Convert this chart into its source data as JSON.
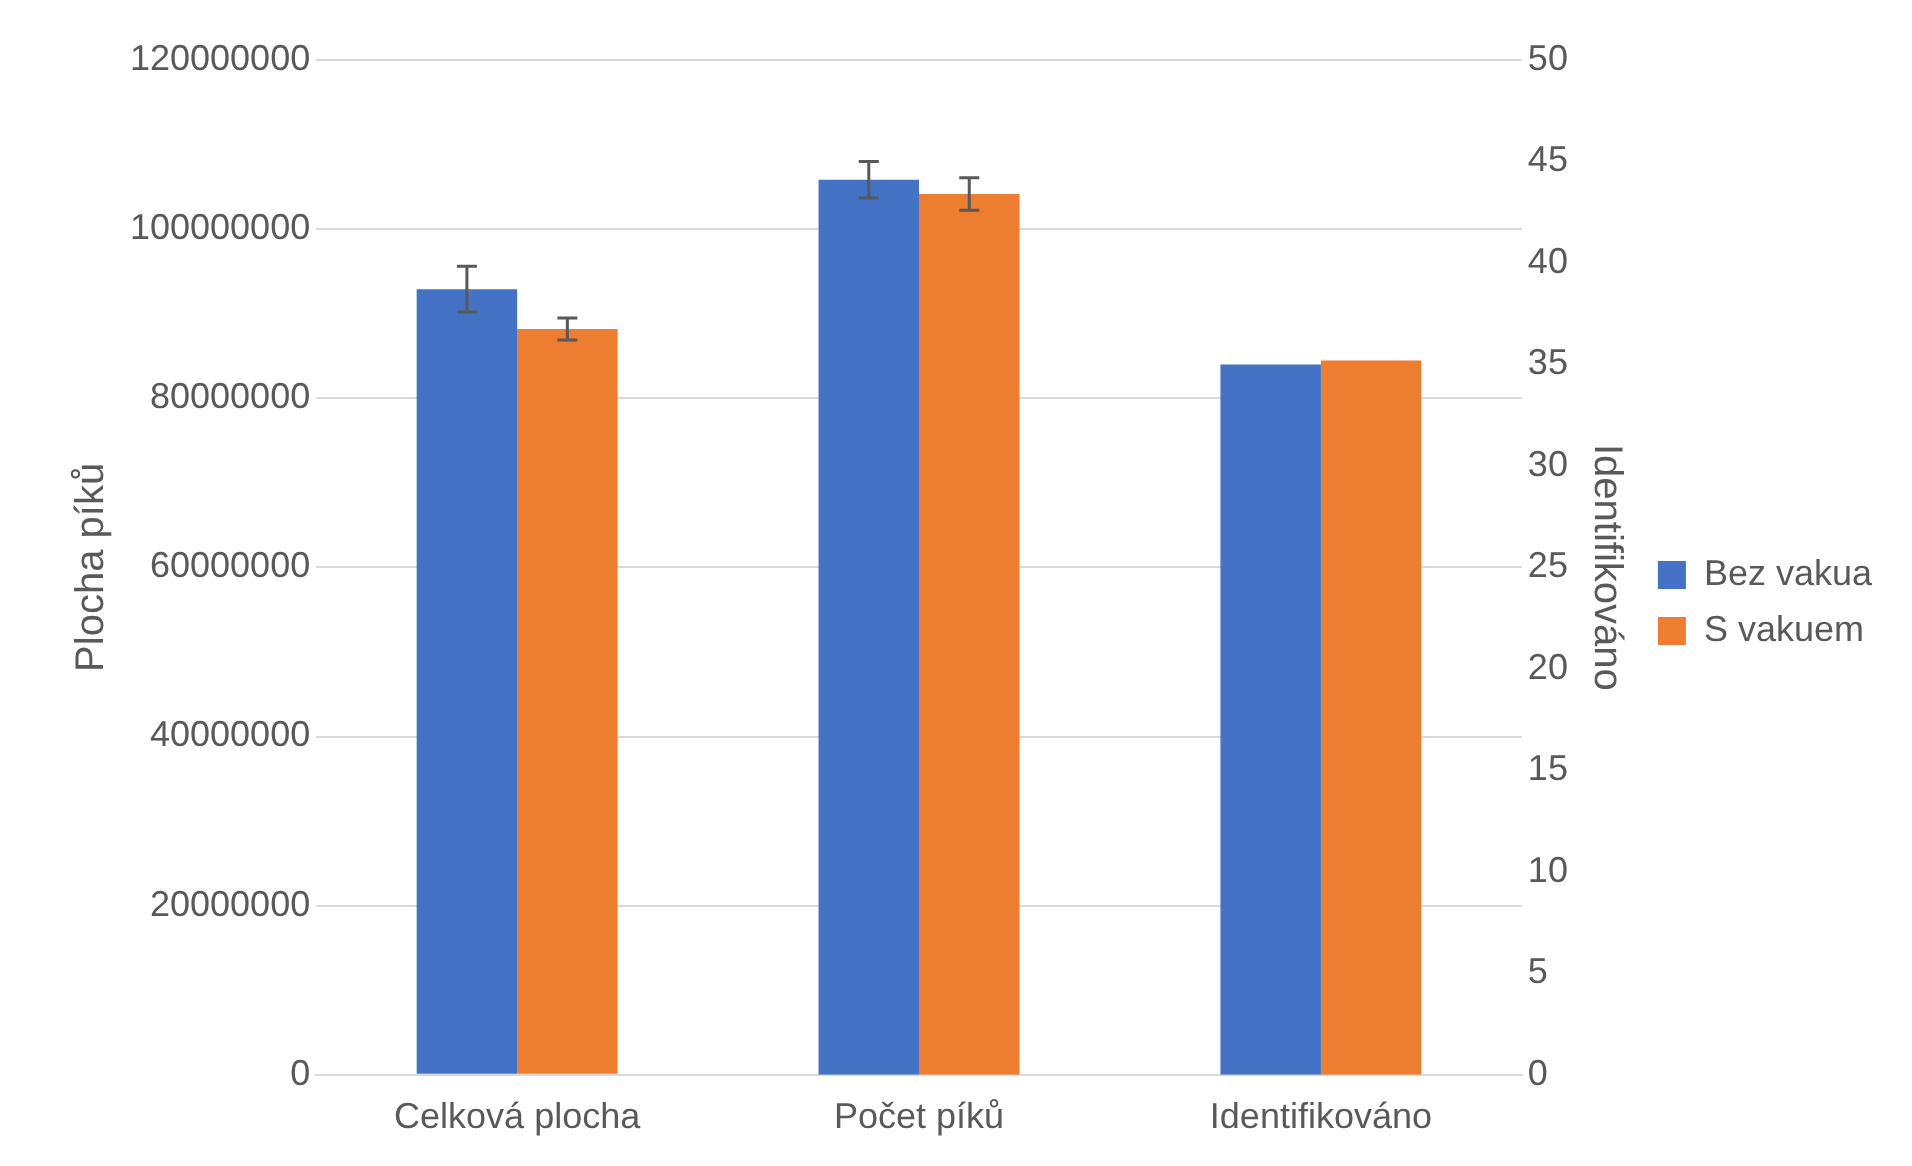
{
  "chart_data": {
    "type": "bar",
    "categories": [
      "Celková plocha",
      "Počet píků",
      "Identifikováno"
    ],
    "series": [
      {
        "name": "Bez vakua",
        "color": "#4472c4",
        "values": [
          92900000,
          null,
          null
        ],
        "errors": [
          2700000,
          null,
          null
        ]
      },
      {
        "name": "S vakuem",
        "color": "#ed7d31",
        "values": [
          88200000,
          null,
          null
        ],
        "errors": [
          1300000,
          null,
          null
        ]
      },
      {
        "color": "#4472c4",
        "axis": "y2",
        "values": [
          null,
          44.1,
          35.0
        ],
        "errors": [
          null,
          0.9,
          null
        ]
      },
      {
        "color": "#ed7d31",
        "axis": "y2",
        "values": [
          null,
          43.4,
          35.2
        ],
        "errors": [
          null,
          0.8,
          null
        ]
      }
    ],
    "ylabel": "Plocha píků",
    "y2label": "Identifikováno",
    "ylim": [
      0,
      120000000
    ],
    "yticks": [
      0,
      20000000,
      40000000,
      60000000,
      80000000,
      100000000,
      120000000
    ],
    "y2lim": [
      0,
      50
    ],
    "y2ticks": [
      0,
      5,
      10,
      15,
      20,
      25,
      30,
      35,
      40,
      45,
      50
    ],
    "grid": "y",
    "legend": "right"
  }
}
